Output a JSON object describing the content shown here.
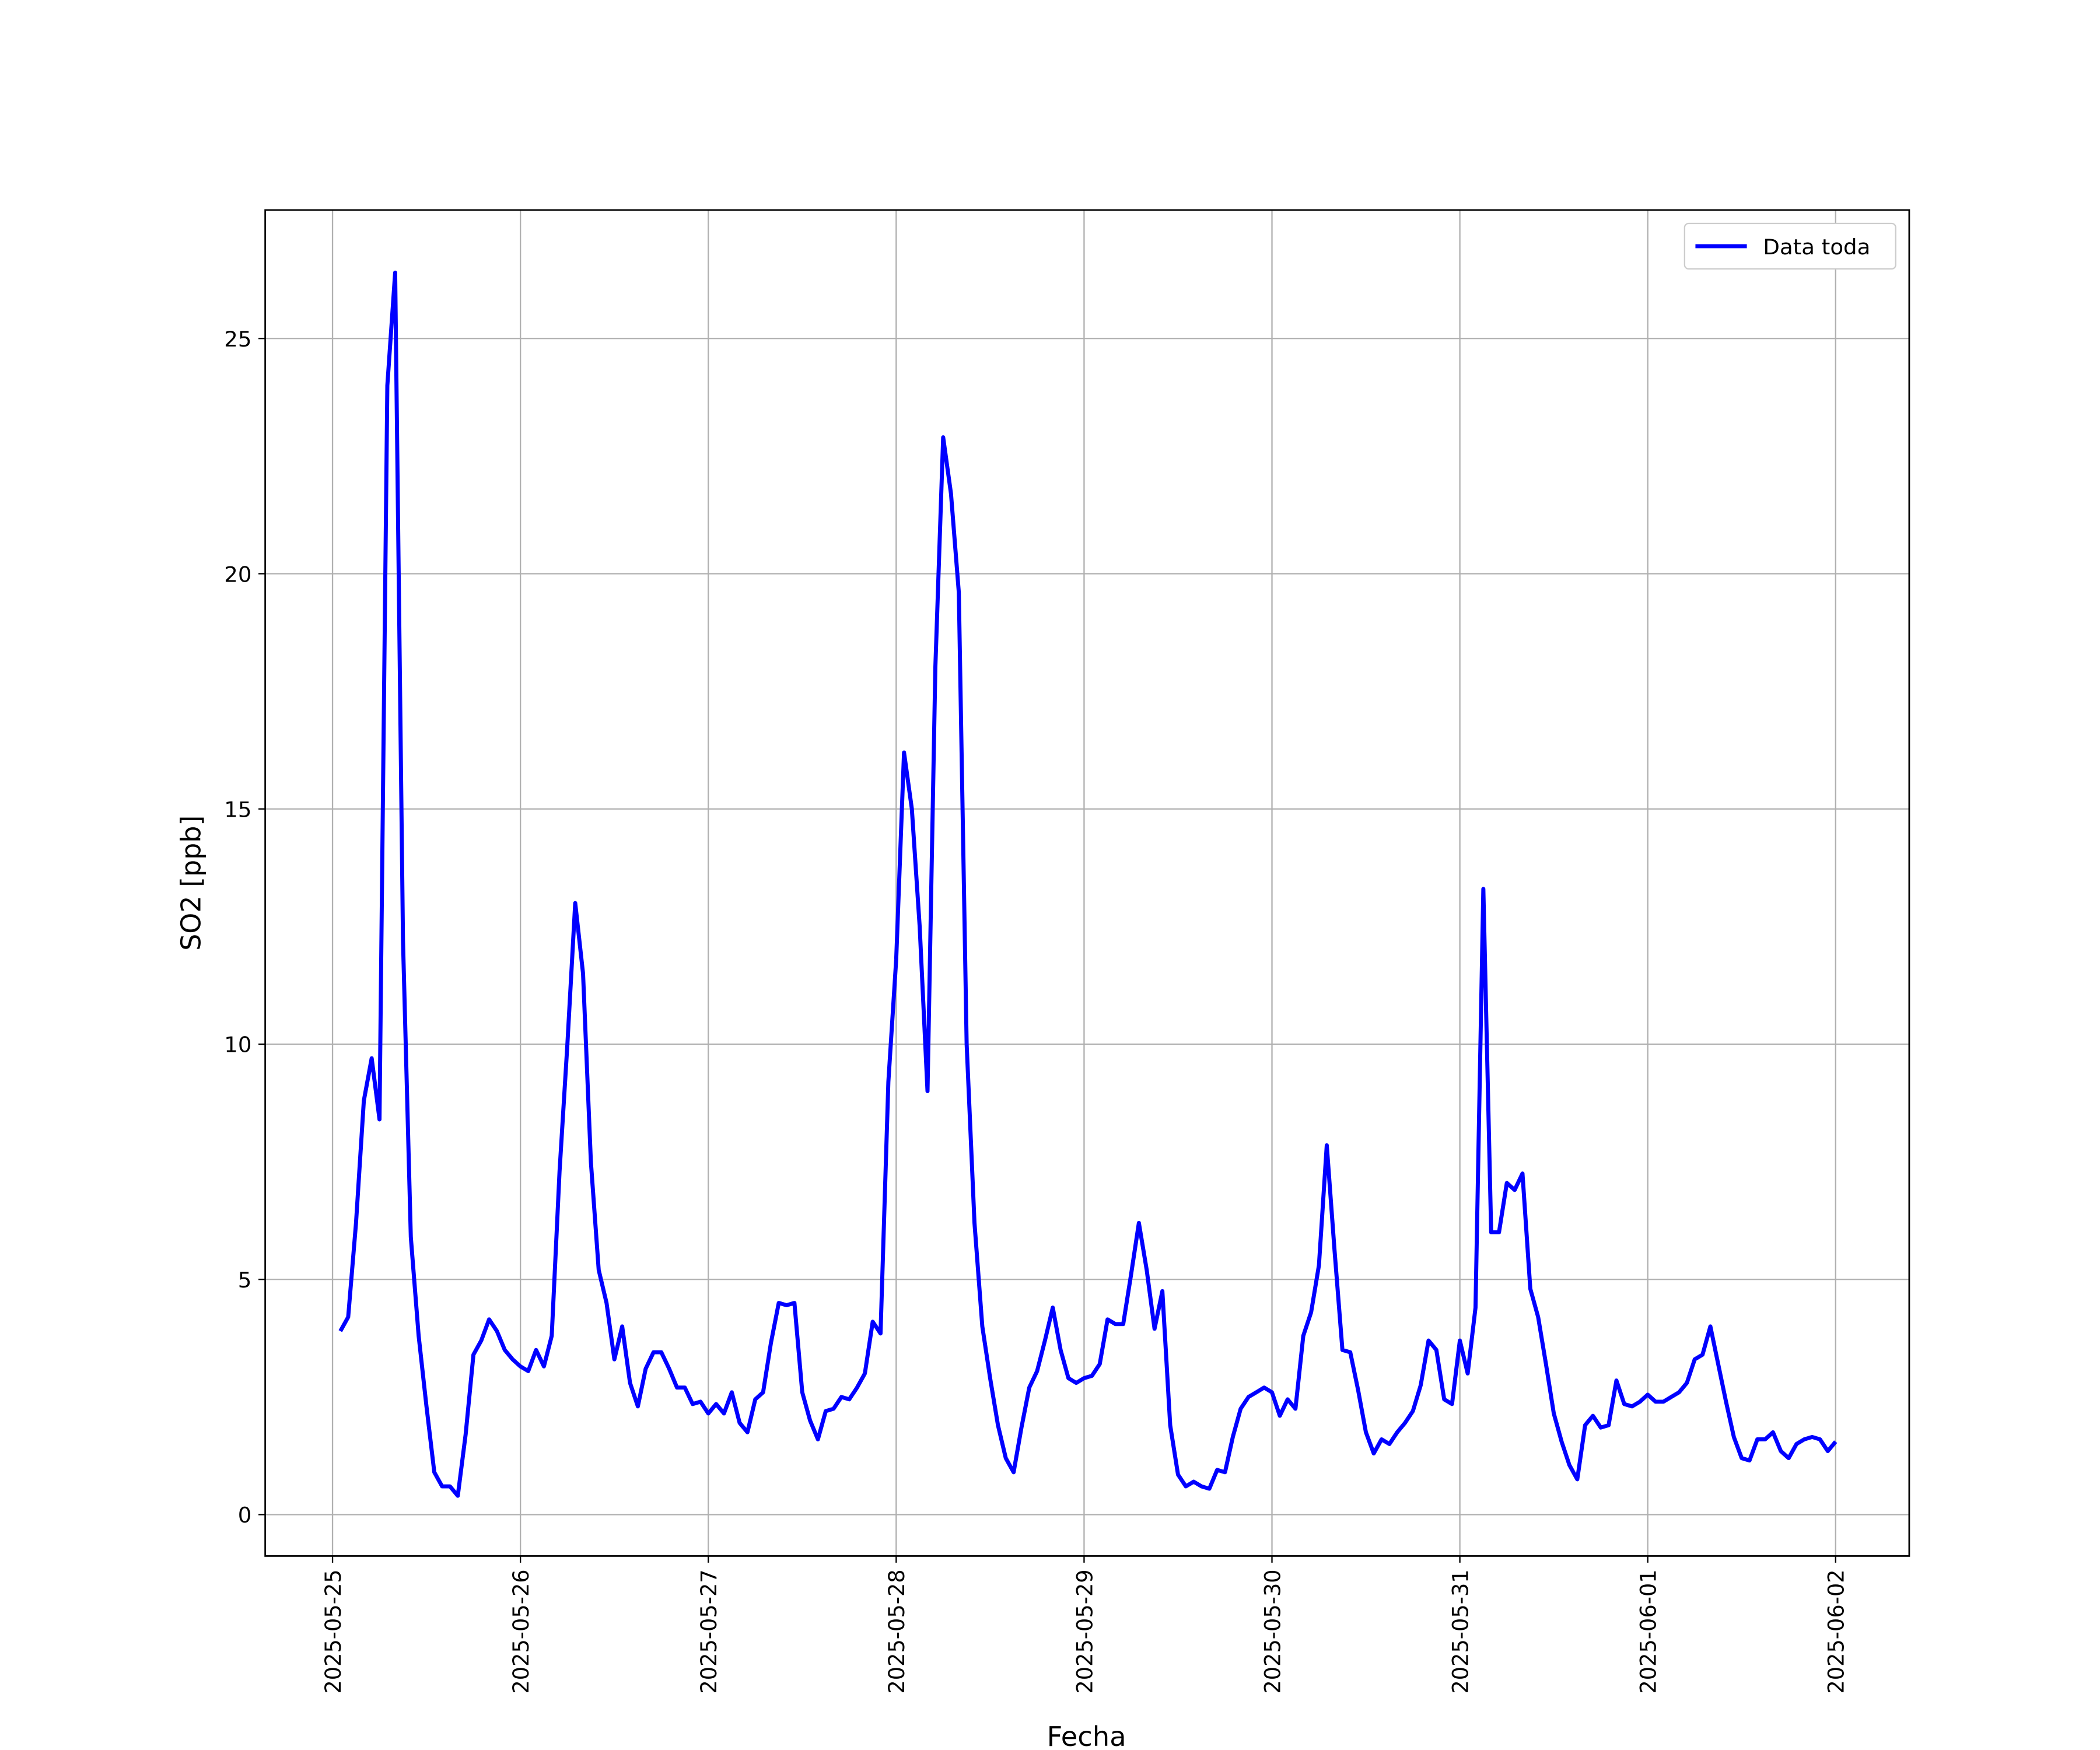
{
  "chart_data": {
    "type": "line",
    "x_label": "Fecha",
    "y_label": "SO2 [ppb]",
    "x": [
      1,
      2,
      3,
      4,
      5,
      6,
      7,
      8,
      9,
      10,
      11,
      12,
      13,
      14,
      15,
      16,
      17,
      18,
      19,
      20,
      21,
      22,
      23,
      24,
      25,
      26,
      27,
      28,
      29,
      30,
      31,
      32,
      33,
      34,
      35,
      36,
      37,
      38,
      39,
      40,
      41,
      42,
      43,
      44,
      45,
      46,
      47,
      48,
      49,
      50,
      51,
      52,
      53,
      54,
      55,
      56,
      57,
      58,
      59,
      60,
      61,
      62,
      63,
      64,
      65,
      66,
      67,
      68,
      69,
      70,
      71,
      72,
      73,
      74,
      75,
      76,
      77,
      78,
      79,
      80,
      81,
      82,
      83,
      84,
      85,
      86,
      87,
      88,
      89,
      90,
      91,
      92,
      93,
      94,
      95,
      96,
      97,
      98,
      99,
      100,
      101,
      102,
      103,
      104,
      105,
      106,
      107,
      108,
      109,
      110,
      111,
      112,
      113,
      114,
      115,
      116,
      117,
      118,
      119,
      120,
      121,
      122,
      123,
      124,
      125,
      126,
      127,
      128,
      129,
      130,
      131,
      132,
      133,
      134,
      135,
      136,
      137,
      138,
      139,
      140,
      141,
      142,
      143,
      144,
      145,
      146,
      147,
      148,
      149,
      150,
      151,
      152,
      153,
      154,
      155,
      156,
      157,
      158,
      159,
      160,
      161,
      162,
      163,
      164,
      165,
      166,
      167,
      168,
      169,
      170,
      171,
      172,
      173,
      174,
      175,
      176,
      177,
      178,
      179,
      180,
      181,
      182,
      183,
      184,
      185,
      186,
      187,
      188,
      189,
      190,
      191,
      192
    ],
    "series": [
      {
        "name": "Data toda",
        "color": "#0000ff",
        "values": [
          3.9,
          4.2,
          6.2,
          8.8,
          9.7,
          8.4,
          24.0,
          26.4,
          12.2,
          5.9,
          3.8,
          2.3,
          0.9,
          0.6,
          0.6,
          0.4,
          1.7,
          3.4,
          3.7,
          4.15,
          3.9,
          3.5,
          3.3,
          3.15,
          3.05,
          3.5,
          3.15,
          3.8,
          7.3,
          10.0,
          13.0,
          11.5,
          7.5,
          5.2,
          4.5,
          3.3,
          4.0,
          2.8,
          2.3,
          3.1,
          3.45,
          3.45,
          3.1,
          2.7,
          2.7,
          2.35,
          2.4,
          2.15,
          2.35,
          2.15,
          2.6,
          1.95,
          1.75,
          2.45,
          2.6,
          3.65,
          4.5,
          4.45,
          4.5,
          2.6,
          2.0,
          1.6,
          2.2,
          2.25,
          2.5,
          2.45,
          2.7,
          3.0,
          4.1,
          3.85,
          9.2,
          11.8,
          16.2,
          15.0,
          12.5,
          9.0,
          18.0,
          22.9,
          21.7,
          19.6,
          10.0,
          6.2,
          4.0,
          2.9,
          1.9,
          1.2,
          0.9,
          1.85,
          2.7,
          3.05,
          3.7,
          4.4,
          3.5,
          2.9,
          2.8,
          2.9,
          2.95,
          3.2,
          4.15,
          4.05,
          4.05,
          5.1,
          6.2,
          5.2,
          3.95,
          4.75,
          1.9,
          0.85,
          0.6,
          0.7,
          0.6,
          0.55,
          0.95,
          0.9,
          1.65,
          2.25,
          2.5,
          2.6,
          2.7,
          2.6,
          2.1,
          2.45,
          2.25,
          3.8,
          4.3,
          5.3,
          7.85,
          5.6,
          3.5,
          3.45,
          2.65,
          1.75,
          1.3,
          1.6,
          1.5,
          1.75,
          1.95,
          2.2,
          2.75,
          3.7,
          3.5,
          2.45,
          2.35,
          3.7,
          3.0,
          4.4,
          13.3,
          6.0,
          6.0,
          7.05,
          6.9,
          7.25,
          4.8,
          4.2,
          3.2,
          2.15,
          1.55,
          1.05,
          0.75,
          1.9,
          2.1,
          1.85,
          1.9,
          2.85,
          2.35,
          2.3,
          2.4,
          2.55,
          2.4,
          2.4,
          2.5,
          2.6,
          2.8,
          3.3,
          3.4,
          4.0,
          3.2,
          2.4,
          1.65,
          1.2,
          1.15,
          1.6,
          1.6,
          1.75,
          1.35,
          1.2,
          1.5,
          1.6,
          1.65,
          1.6,
          1.35,
          1.55
        ]
      }
    ],
    "xlim": [
      -8.6,
      201.4
    ],
    "xticks": [
      {
        "value": 0,
        "label": "2025-05-25"
      },
      {
        "value": 24,
        "label": "2025-05-26"
      },
      {
        "value": 48,
        "label": "2025-05-27"
      },
      {
        "value": 72,
        "label": "2025-05-28"
      },
      {
        "value": 96,
        "label": "2025-05-29"
      },
      {
        "value": 120,
        "label": "2025-05-30"
      },
      {
        "value": 144,
        "label": "2025-05-31"
      },
      {
        "value": 168,
        "label": "2025-06-01"
      },
      {
        "value": 192,
        "label": "2025-06-02"
      }
    ],
    "ylim": [
      -0.88,
      27.73
    ],
    "yticks": [
      0,
      5,
      10,
      15,
      20,
      25
    ],
    "grid": true,
    "legend": "upper right"
  }
}
